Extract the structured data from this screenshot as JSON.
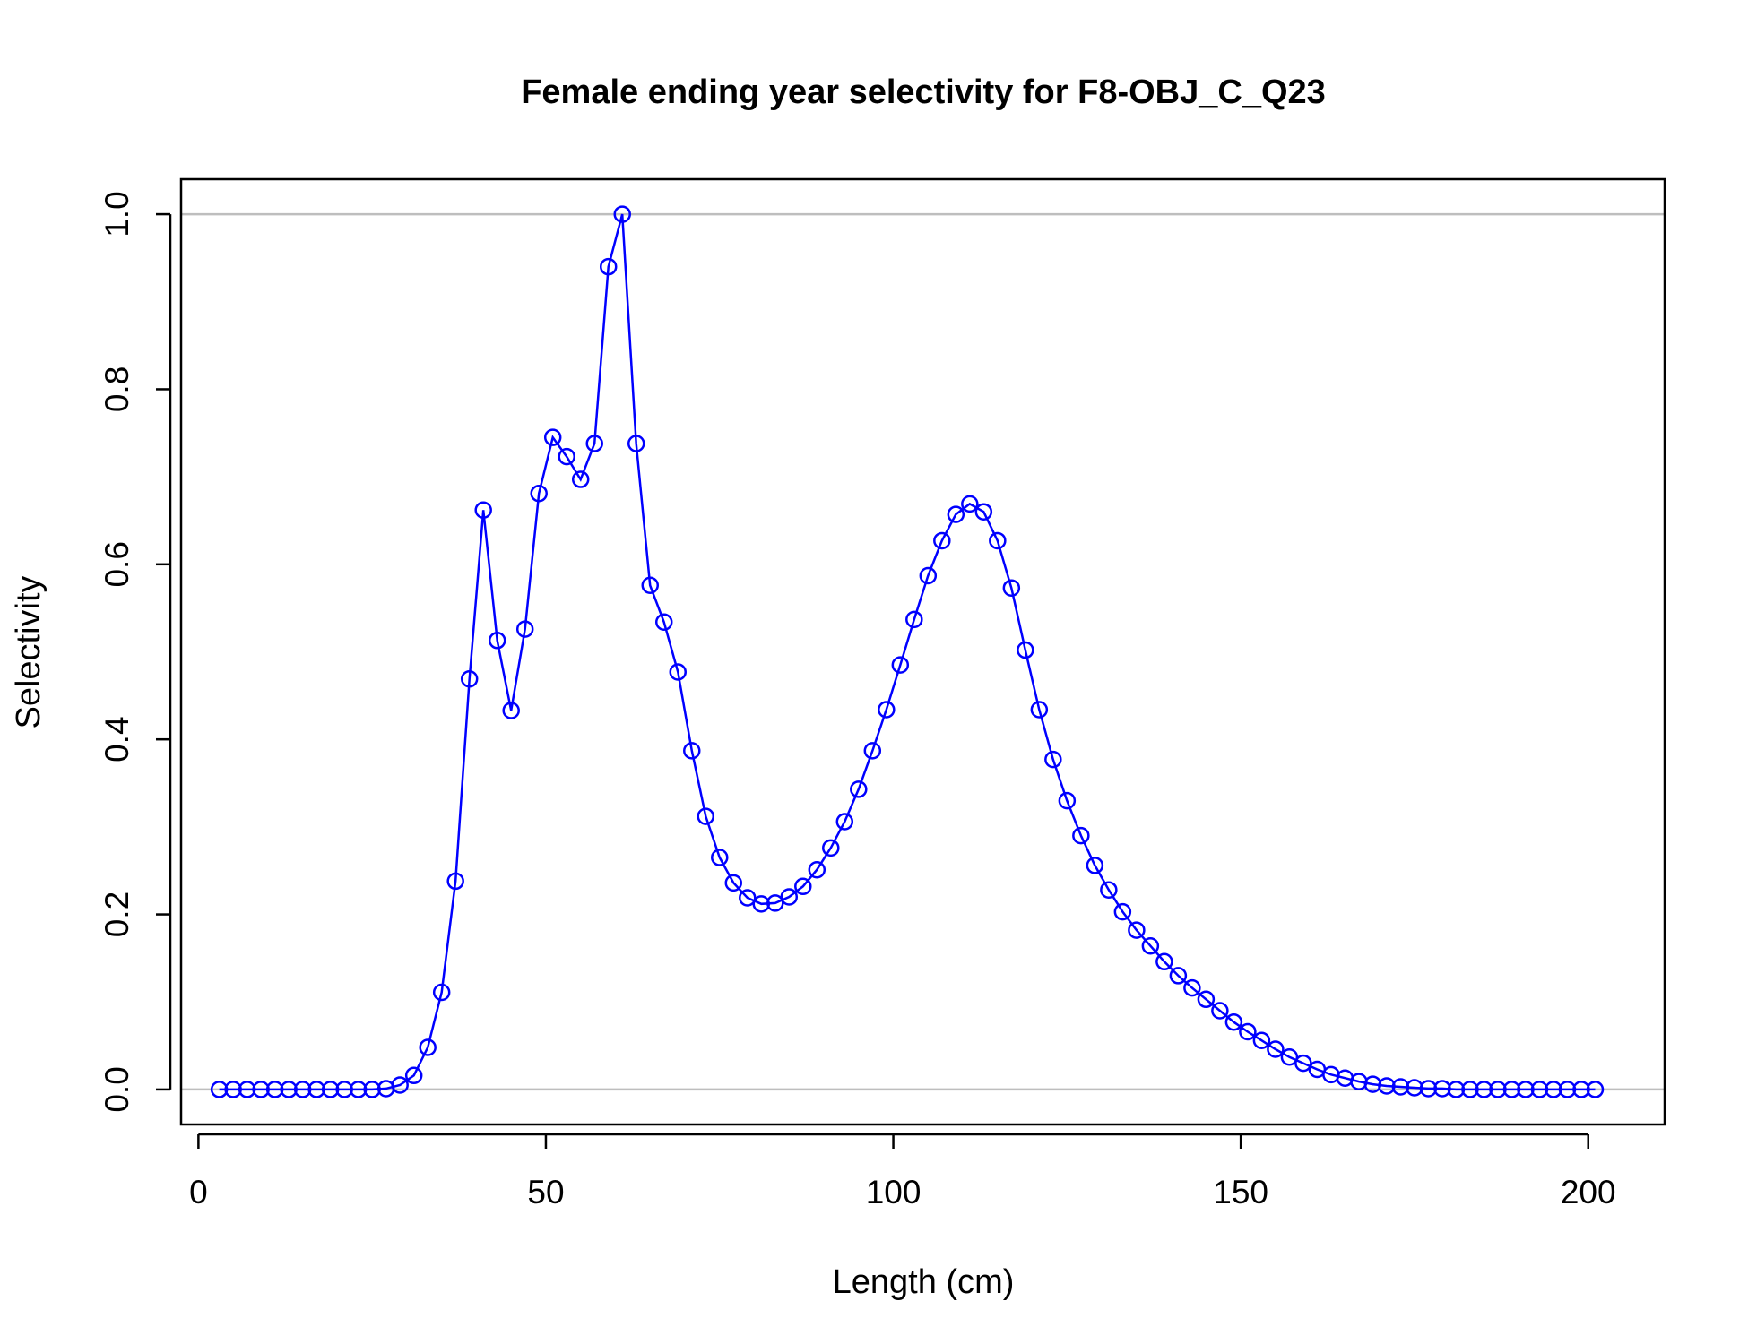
{
  "chart_data": {
    "type": "line",
    "title": "Female ending year selectivity for F8-OBJ_C_Q23",
    "xlabel": "Length (cm)",
    "ylabel": "Selectivity",
    "xlim": [
      -2.5,
      211
    ],
    "ylim": [
      -0.04,
      1.04
    ],
    "x_ticks": [
      0,
      50,
      100,
      150,
      200
    ],
    "y_ticks": [
      0.0,
      0.2,
      0.4,
      0.6,
      0.8,
      1.0
    ],
    "x_tick_labels": [
      "0",
      "50",
      "100",
      "150",
      "200"
    ],
    "y_tick_labels": [
      "0.0",
      "0.2",
      "0.4",
      "0.6",
      "0.8",
      "1.0"
    ],
    "reference_lines": [
      0,
      1
    ],
    "reference_line_color": "#bebebe",
    "series_color": "#0000ff",
    "marker": "open-circle",
    "grid": false,
    "legend": "none",
    "series": [
      {
        "x": [
          3,
          5,
          7,
          9,
          11,
          13,
          15,
          17,
          19,
          21,
          23,
          25,
          27,
          29,
          31,
          33,
          35,
          37,
          39,
          41,
          43,
          45,
          47,
          49,
          51,
          53,
          55,
          57,
          59,
          61,
          63,
          65,
          67,
          69,
          71,
          73,
          75,
          77,
          79,
          81,
          83,
          85,
          87,
          89,
          91,
          93,
          95,
          97,
          99,
          101,
          103,
          105,
          107,
          109,
          111,
          113,
          115,
          117,
          119,
          121,
          123,
          125,
          127,
          129,
          131,
          133,
          135,
          137,
          139,
          141,
          143,
          145,
          147,
          149,
          151,
          153,
          155,
          157,
          159,
          161,
          163,
          165,
          167,
          169,
          171,
          173,
          175,
          177,
          179,
          181,
          183,
          185,
          187,
          189,
          191,
          193,
          195,
          197,
          199,
          201
        ],
        "y": [
          0.0,
          0.0,
          0.0,
          0.0,
          0.0,
          0.0,
          0.0,
          0.0,
          0.0,
          0.0,
          0.0,
          0.0,
          0.001,
          0.005,
          0.016,
          0.048,
          0.111,
          0.238,
          0.469,
          0.662,
          0.513,
          0.433,
          0.526,
          0.681,
          0.745,
          0.723,
          0.697,
          0.738,
          0.94,
          1.0,
          0.738,
          0.576,
          0.534,
          0.477,
          0.387,
          0.312,
          0.265,
          0.236,
          0.219,
          0.212,
          0.213,
          0.22,
          0.232,
          0.251,
          0.276,
          0.306,
          0.343,
          0.387,
          0.434,
          0.485,
          0.537,
          0.587,
          0.627,
          0.657,
          0.669,
          0.66,
          0.627,
          0.573,
          0.502,
          0.434,
          0.377,
          0.33,
          0.29,
          0.256,
          0.228,
          0.203,
          0.182,
          0.164,
          0.146,
          0.13,
          0.116,
          0.103,
          0.09,
          0.077,
          0.066,
          0.056,
          0.046,
          0.037,
          0.03,
          0.023,
          0.017,
          0.013,
          0.009,
          0.006,
          0.004,
          0.003,
          0.002,
          0.001,
          0.001,
          0.0,
          0.0,
          0.0,
          0.0,
          0.0,
          0.0,
          0.0,
          0.0,
          0.0,
          0.0,
          0.0
        ]
      }
    ]
  }
}
